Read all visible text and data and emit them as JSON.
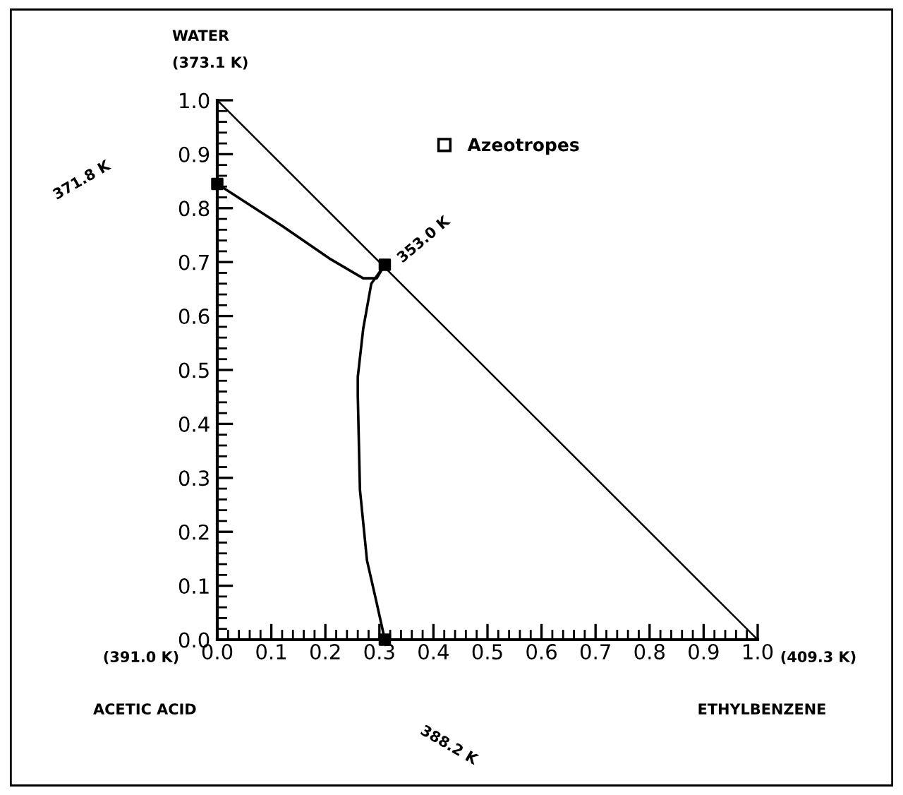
{
  "chart_data": {
    "type": "line",
    "xlim": [
      0,
      1
    ],
    "ylim": [
      0,
      1
    ],
    "xticks": [
      {
        "value": 0,
        "label": "0.0"
      },
      0.1,
      0.2,
      0.3,
      0.4,
      0.5,
      0.6,
      0.7,
      0.8,
      0.9,
      {
        "value": 1,
        "label": "1.0"
      }
    ],
    "yticks": [
      {
        "value": 0,
        "label": "0.0"
      },
      0.1,
      0.2,
      0.3,
      0.4,
      0.5,
      0.6,
      0.7,
      0.8,
      0.9,
      {
        "value": 1,
        "label": "1.0"
      }
    ],
    "grid": false,
    "legend": "top right",
    "line_style": "solid",
    "series": [
      {
        "color": "#000000",
        "x": [
          0,
          1
        ],
        "values": [
          1,
          0
        ]
      },
      {
        "color": "#000000",
        "x": [
          0,
          0.12,
          0.207,
          0.27,
          0.295,
          0.31
        ],
        "values": [
          0.845,
          0.767,
          0.707,
          0.67,
          0.67,
          0.695
        ]
      },
      {
        "color": "#000000",
        "x": [
          0.31,
          0.285,
          0.27,
          0.26,
          0.26,
          0.264,
          0.277,
          0.295,
          0.31
        ],
        "values": [
          0.695,
          0.66,
          0.576,
          0.487,
          0.453,
          0.278,
          0.147,
          0.068,
          0
        ]
      },
      {
        "type": "scatter",
        "name": "Azeotropes",
        "color": "#000000",
        "marker": "square",
        "x": [
          0,
          0.31,
          0.31
        ],
        "values": [
          0.845,
          0.695,
          0
        ]
      }
    ],
    "annotations": [
      "WATER",
      "(373.1 K)",
      "(391.0 K)",
      "ACETIC ACID",
      "(409.3 K)",
      "ETHYLBENZENE",
      "371.8 K",
      "353.0 K",
      "388.2 K"
    ]
  }
}
